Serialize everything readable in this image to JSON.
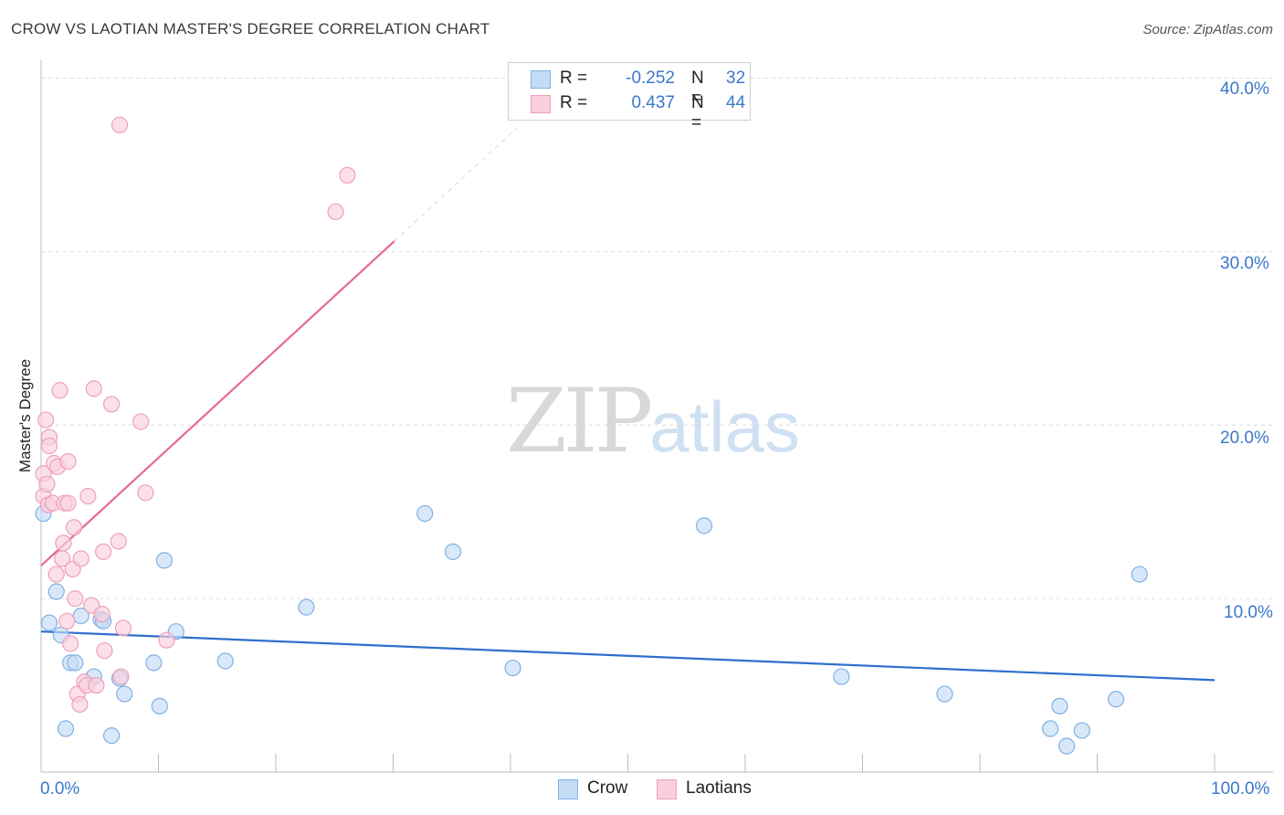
{
  "title": "CROW VS LAOTIAN MASTER'S DEGREE CORRELATION CHART",
  "source": "Source: ZipAtlas.com",
  "watermark": {
    "zip": "ZIP",
    "atlas": "atlas"
  },
  "legend": {
    "rows": [
      {
        "r_label": "R =",
        "r_value": "-0.252",
        "n_label": "N =",
        "n_value": "32"
      },
      {
        "r_label": "R =",
        "r_value": "0.437",
        "n_label": "N =",
        "n_value": "44"
      }
    ]
  },
  "chart_data": {
    "type": "scatter",
    "title": "CROW VS LAOTIAN MASTER'S DEGREE CORRELATION CHART",
    "xlabel": "",
    "ylabel": "Master's Degree",
    "xlim": [
      0,
      100
    ],
    "ylim": [
      0,
      40.5
    ],
    "x_tick_labels": [
      "0.0%",
      "100.0%"
    ],
    "y_ticks": [
      10,
      20,
      30,
      40
    ],
    "y_tick_labels": [
      "10.0%",
      "20.0%",
      "30.0%",
      "40.0%"
    ],
    "grid": true,
    "legend_position": "bottom-center",
    "colors": {
      "crow": "#7fb0e6",
      "crow_fill": "#c5dcf5",
      "crow_line": "#2f6fcd",
      "laotians": "#ef9fbb",
      "laotians_fill": "#f9cfde",
      "laotians_line": "#e8698f"
    },
    "series": [
      {
        "name": "Crow",
        "r": -0.252,
        "n": 32,
        "trend": {
          "x": [
            0,
            100
          ],
          "y": [
            8.1,
            5.3
          ],
          "dashed_extension": false
        },
        "points": [
          {
            "x": 0.2,
            "y": 14.9
          },
          {
            "x": 0.7,
            "y": 8.6
          },
          {
            "x": 1.3,
            "y": 10.4
          },
          {
            "x": 1.7,
            "y": 7.9
          },
          {
            "x": 2.1,
            "y": 2.5
          },
          {
            "x": 2.5,
            "y": 6.3
          },
          {
            "x": 2.9,
            "y": 6.3
          },
          {
            "x": 3.4,
            "y": 9.0
          },
          {
            "x": 4.5,
            "y": 5.5
          },
          {
            "x": 5.1,
            "y": 8.8
          },
          {
            "x": 5.3,
            "y": 8.7
          },
          {
            "x": 6.0,
            "y": 2.1
          },
          {
            "x": 6.7,
            "y": 5.4
          },
          {
            "x": 7.1,
            "y": 4.5
          },
          {
            "x": 9.6,
            "y": 6.3
          },
          {
            "x": 10.1,
            "y": 3.8
          },
          {
            "x": 10.5,
            "y": 12.2
          },
          {
            "x": 11.5,
            "y": 8.1
          },
          {
            "x": 15.7,
            "y": 6.4
          },
          {
            "x": 22.6,
            "y": 9.5
          },
          {
            "x": 32.7,
            "y": 14.9
          },
          {
            "x": 35.1,
            "y": 12.7
          },
          {
            "x": 40.2,
            "y": 6.0
          },
          {
            "x": 56.5,
            "y": 14.2
          },
          {
            "x": 68.2,
            "y": 5.5
          },
          {
            "x": 77.0,
            "y": 4.5
          },
          {
            "x": 86.0,
            "y": 2.5
          },
          {
            "x": 86.8,
            "y": 3.8
          },
          {
            "x": 87.4,
            "y": 1.5
          },
          {
            "x": 88.7,
            "y": 2.4
          },
          {
            "x": 91.6,
            "y": 4.2
          },
          {
            "x": 93.6,
            "y": 11.4
          }
        ]
      },
      {
        "name": "Laotians",
        "r": 0.437,
        "n": 44,
        "trend": {
          "x": [
            0,
            30.1
          ],
          "y": [
            11.9,
            30.6
          ],
          "dashed_extension": {
            "x": [
              30.1,
              40.5
            ],
            "y": [
              30.6,
              37.1
            ]
          }
        },
        "points": [
          {
            "x": 0.2,
            "y": 17.2
          },
          {
            "x": 0.2,
            "y": 15.9
          },
          {
            "x": 0.4,
            "y": 20.3
          },
          {
            "x": 0.5,
            "y": 16.6
          },
          {
            "x": 0.6,
            "y": 15.4
          },
          {
            "x": 0.7,
            "y": 19.3
          },
          {
            "x": 0.7,
            "y": 18.8
          },
          {
            "x": 1.0,
            "y": 15.5
          },
          {
            "x": 1.1,
            "y": 17.8
          },
          {
            "x": 1.3,
            "y": 11.4
          },
          {
            "x": 1.4,
            "y": 17.6
          },
          {
            "x": 1.6,
            "y": 22.0
          },
          {
            "x": 1.8,
            "y": 12.3
          },
          {
            "x": 1.9,
            "y": 13.2
          },
          {
            "x": 2.0,
            "y": 15.5
          },
          {
            "x": 2.2,
            "y": 8.7
          },
          {
            "x": 2.3,
            "y": 15.5
          },
          {
            "x": 2.3,
            "y": 17.9
          },
          {
            "x": 2.5,
            "y": 7.4
          },
          {
            "x": 2.7,
            "y": 11.7
          },
          {
            "x": 2.8,
            "y": 14.1
          },
          {
            "x": 2.9,
            "y": 10.0
          },
          {
            "x": 3.1,
            "y": 4.5
          },
          {
            "x": 3.3,
            "y": 3.9
          },
          {
            "x": 3.4,
            "y": 12.3
          },
          {
            "x": 3.7,
            "y": 5.2
          },
          {
            "x": 3.9,
            "y": 5.0
          },
          {
            "x": 4.0,
            "y": 15.9
          },
          {
            "x": 4.3,
            "y": 9.6
          },
          {
            "x": 4.5,
            "y": 22.1
          },
          {
            "x": 4.7,
            "y": 5.0
          },
          {
            "x": 5.2,
            "y": 9.1
          },
          {
            "x": 5.3,
            "y": 12.7
          },
          {
            "x": 5.4,
            "y": 7.0
          },
          {
            "x": 6.0,
            "y": 21.2
          },
          {
            "x": 6.6,
            "y": 13.3
          },
          {
            "x": 6.7,
            "y": 37.3
          },
          {
            "x": 6.8,
            "y": 5.5
          },
          {
            "x": 7.0,
            "y": 8.3
          },
          {
            "x": 8.5,
            "y": 20.2
          },
          {
            "x": 8.9,
            "y": 16.1
          },
          {
            "x": 10.7,
            "y": 7.6
          },
          {
            "x": 25.1,
            "y": 32.3
          },
          {
            "x": 26.1,
            "y": 34.4
          }
        ]
      }
    ]
  }
}
